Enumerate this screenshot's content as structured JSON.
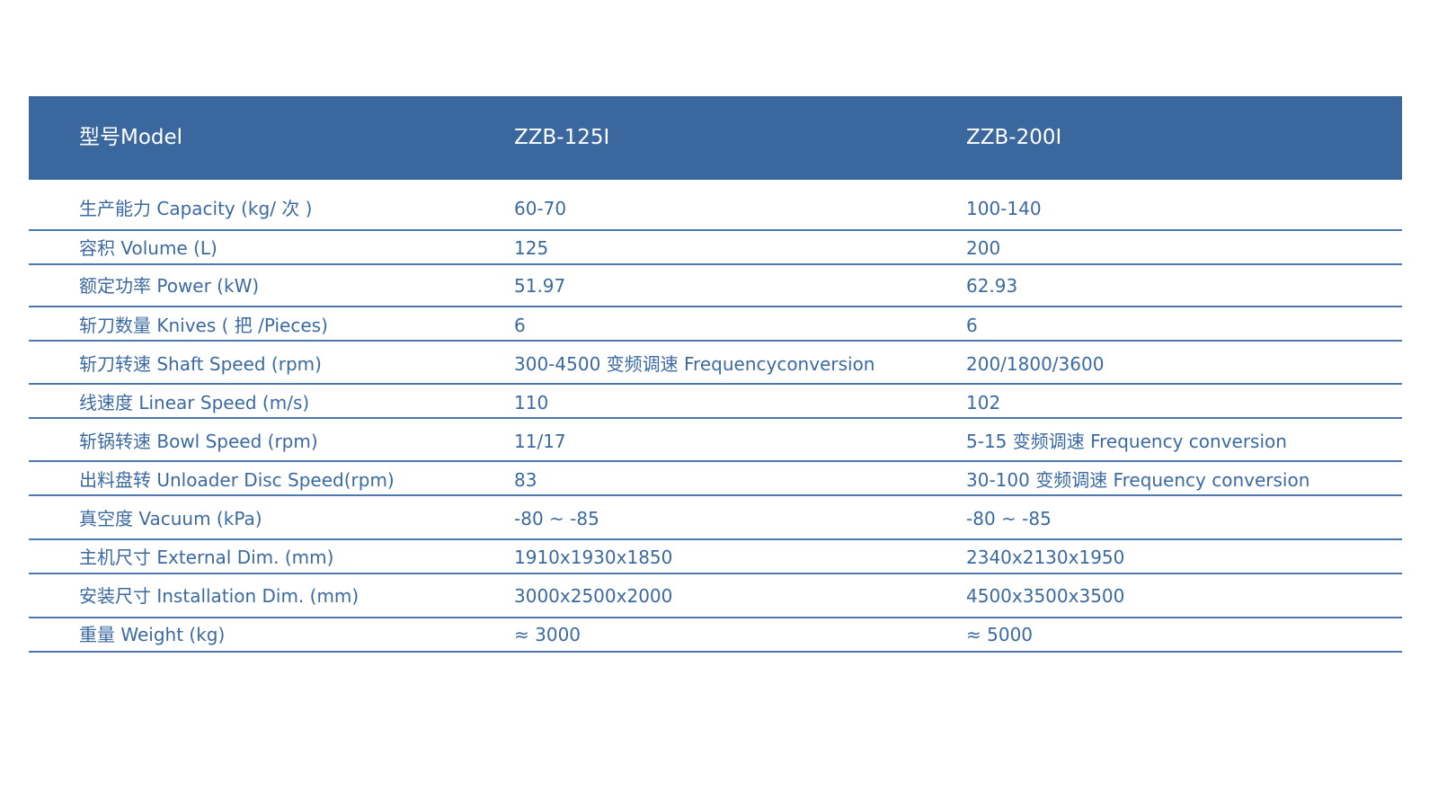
{
  "header": {
    "label": "型号Model",
    "model_a": "ZZB-125I",
    "model_b": "ZZB-200I"
  },
  "colors": {
    "header_bg": "#3a689e",
    "text": "#3b6aa1",
    "rule": "#4c78ad"
  },
  "rows": [
    {
      "label": "生产能力 Capacity (kg/ 次 )",
      "a": "60-70",
      "b": "100-140"
    },
    {
      "label": "容积 Volume (L)",
      "a": "125",
      "b": "200"
    },
    {
      "label": "额定功率 Power (kW)",
      "a": "51.97",
      "b": "62.93"
    },
    {
      "label": "斩刀数量 Knives ( 把 /Pieces)",
      "a": "6",
      "b": "6"
    },
    {
      "label": "斩刀转速 Shaft Speed (rpm)",
      "a": "300-4500 变频调速 Frequencyconversion",
      "b": "200/1800/3600"
    },
    {
      "label": "线速度 Linear Speed (m/s)",
      "a": "110",
      "b": "102"
    },
    {
      "label": "斩锅转速 Bowl Speed (rpm)",
      "a": "11/17",
      "b": "5-15   变频调速 Frequency conversion"
    },
    {
      "label": "出料盘转 Unloader Disc Speed(rpm)",
      "a": "83",
      "b": "30-100 变频调速 Frequency conversion"
    },
    {
      "label": "真空度 Vacuum (kPa)",
      "a": "-80 ~ -85",
      "b": "-80 ~ -85"
    },
    {
      "label": "主机尺寸 External Dim. (mm)",
      "a": "1910x1930x1850",
      "b": "2340x2130x1950"
    },
    {
      "label": "安装尺寸 Installation Dim. (mm)",
      "a": "3000x2500x2000",
      "b": "4500x3500x3500"
    },
    {
      "label": "重量 Weight (kg)",
      "a": "≈ 3000",
      "b": "≈ 5000"
    }
  ]
}
